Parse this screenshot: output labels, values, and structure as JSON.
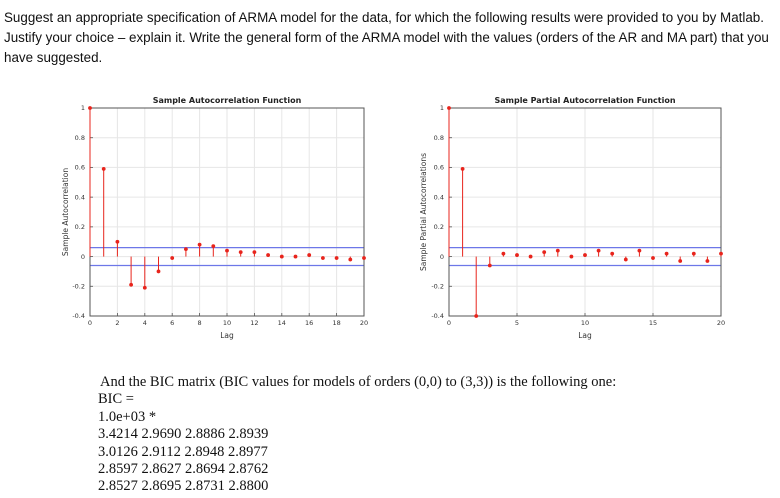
{
  "question": {
    "text": "Suggest an appropriate specification of ARMA model for the data, for which the following results were provided to you by Matlab. Justify your choice – explain it. Write the general form of the ARMA model with the values (orders of the AR and MA part) that you have suggested."
  },
  "colors": {
    "stem": "#e8241c",
    "bounds": "#6d77e8",
    "axis": "#555555",
    "grid": "#e6e6e6"
  },
  "chart_data": [
    {
      "type": "stem",
      "title": "Sample Autocorrelation Function",
      "xlabel": "Lag",
      "ylabel": "Sample Autocorrelation",
      "xlim": [
        0,
        20
      ],
      "ylim": [
        -0.4,
        1
      ],
      "xticks": [
        0,
        2,
        4,
        6,
        8,
        10,
        12,
        14,
        16,
        18,
        20
      ],
      "yticks": [
        -0.4,
        -0.2,
        0,
        0.2,
        0.4,
        0.6,
        0.8,
        1
      ],
      "ytick_labels": [
        "-0.4",
        "-0.2",
        "0",
        "0.2",
        "0.4",
        "0.6",
        "0.8",
        "1"
      ],
      "confidence_bounds": [
        0.06,
        -0.06
      ],
      "grid": true,
      "x": [
        0,
        1,
        2,
        3,
        4,
        5,
        6,
        7,
        8,
        9,
        10,
        11,
        12,
        13,
        14,
        15,
        16,
        17,
        18,
        19,
        20
      ],
      "values": [
        1.0,
        0.59,
        0.1,
        -0.19,
        -0.21,
        -0.1,
        -0.01,
        0.05,
        0.08,
        0.07,
        0.04,
        0.03,
        0.03,
        0.01,
        0.0,
        0.0,
        0.01,
        -0.01,
        -0.01,
        -0.02,
        -0.01
      ]
    },
    {
      "type": "stem",
      "title": "Sample Partial Autocorrelation Function",
      "xlabel": "Lag",
      "ylabel": "Sample Partial Autocorrelations",
      "xlim": [
        0,
        20
      ],
      "ylim": [
        -0.4,
        1
      ],
      "xticks": [
        0,
        5,
        10,
        15,
        20
      ],
      "yticks": [
        -0.4,
        -0.2,
        0,
        0.2,
        0.4,
        0.6,
        0.8,
        1
      ],
      "ytick_labels": [
        "-0.4",
        "-0.2",
        "0",
        "0.2",
        "0.4",
        "0.6",
        "0.8",
        "1"
      ],
      "confidence_bounds": [
        0.06,
        -0.06
      ],
      "grid": true,
      "x": [
        0,
        1,
        2,
        3,
        4,
        5,
        6,
        7,
        8,
        9,
        10,
        11,
        12,
        13,
        14,
        15,
        16,
        17,
        18,
        19,
        20
      ],
      "values": [
        1.0,
        0.59,
        -0.4,
        -0.06,
        0.02,
        0.01,
        0.0,
        0.03,
        0.04,
        0.0,
        0.01,
        0.04,
        0.02,
        -0.02,
        0.04,
        -0.01,
        0.02,
        -0.03,
        0.02,
        -0.03,
        0.02
      ]
    }
  ],
  "bic": {
    "intro": "And the BIC matrix (BIC values for models of orders (0,0) to (3,3)) is the following one:",
    "label": "BIC =",
    "scale": "1.0e+03 *",
    "rows": [
      "3.4214 2.9690 2.8886 2.8939",
      "3.0126 2.9112 2.8948 2.8977",
      "2.8597 2.8627 2.8694 2.8762",
      "2.8527 2.8695 2.8731 2.8800"
    ]
  }
}
